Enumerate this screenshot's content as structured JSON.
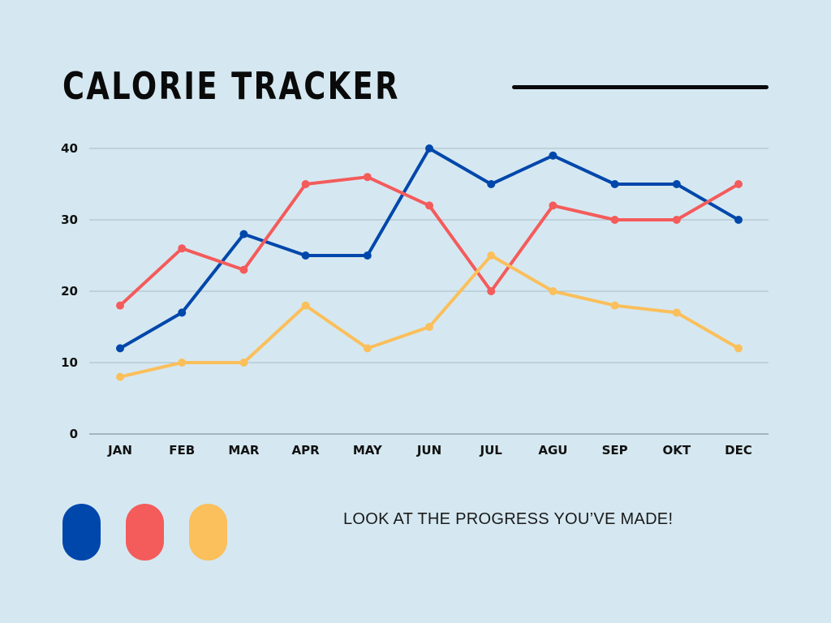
{
  "header": {
    "title": "CALORIE TRACKER"
  },
  "footer": {
    "tagline": "LOOK AT THE PROGRESS YOU’VE MADE!",
    "legend_swatches": [
      "#0047ab",
      "#f45b5b",
      "#fbbf5b"
    ]
  },
  "chart_data": {
    "type": "line",
    "title": "CALORIE TRACKER",
    "xlabel": "",
    "ylabel": "",
    "categories": [
      "JAN",
      "FEB",
      "MAR",
      "APR",
      "MAY",
      "JUN",
      "JUL",
      "AGU",
      "SEP",
      "OKT",
      "DEC"
    ],
    "ylim": [
      0,
      40
    ],
    "yticks": [
      0,
      10,
      20,
      30,
      40
    ],
    "grid": true,
    "legend": "none",
    "series": [
      {
        "color": "#0047ab",
        "values": [
          12,
          17,
          28,
          25,
          25,
          40,
          35,
          39,
          35,
          35,
          30
        ]
      },
      {
        "color": "#f45b5b",
        "values": [
          18,
          26,
          23,
          35,
          36,
          32,
          20,
          32,
          30,
          30,
          35
        ]
      },
      {
        "color": "#fbbf5b",
        "values": [
          8,
          10,
          10,
          18,
          12,
          15,
          25,
          20,
          18,
          17,
          12
        ]
      }
    ]
  }
}
